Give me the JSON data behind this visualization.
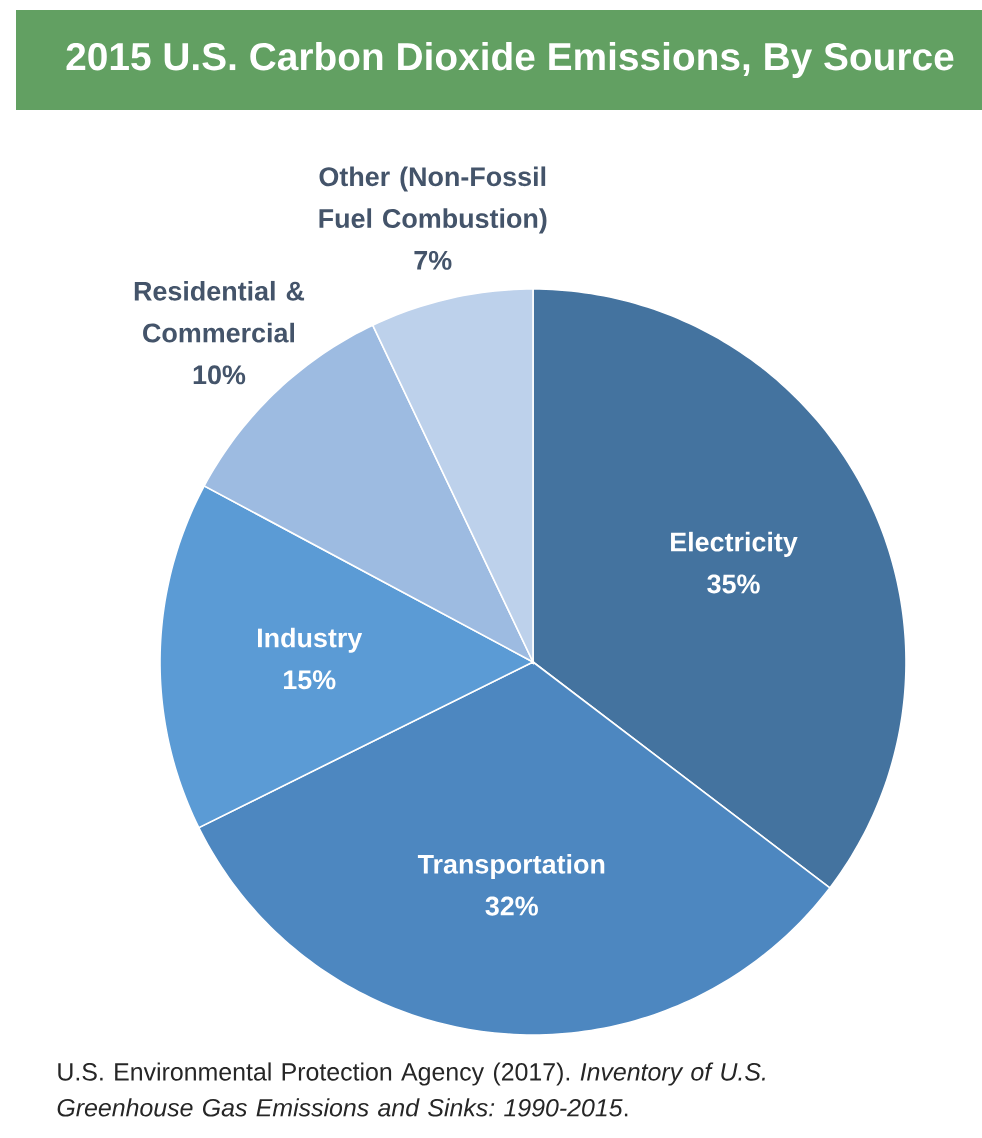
{
  "chart_data": {
    "type": "pie",
    "title": "2015 U.S. Carbon Dioxide Emissions, By Source",
    "categories": [
      "Electricity",
      "Transportation",
      "Industry",
      "Residential & Commercial",
      "Other (Non-Fossil Fuel Combustion)"
    ],
    "values": [
      35,
      32,
      15,
      10,
      7
    ],
    "value_labels": [
      "35%",
      "32%",
      "15%",
      "10%",
      "7%"
    ],
    "colors": [
      "#44739f",
      "#4d87c0",
      "#5b9bd5",
      "#9dbbe1",
      "#bdd1eb"
    ],
    "annotations": [
      "U.S. Environmental Protection Agency (2017). *Inventory of U.S. Greenhouse Gas Emissions and Sinks: 1990-2015*."
    ]
  }
}
